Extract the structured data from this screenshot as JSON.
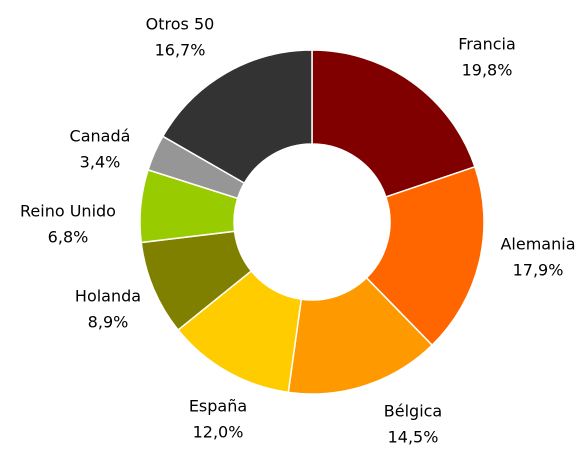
{
  "chart_data": {
    "type": "donut",
    "categories": [
      "Francia",
      "Alemania",
      "Bélgica",
      "España",
      "Holanda",
      "Reino Unido",
      "Canadá",
      "Otros 50"
    ],
    "values": [
      19.8,
      17.9,
      14.5,
      12.0,
      8.9,
      6.8,
      3.4,
      16.7
    ],
    "value_labels": [
      "19,8%",
      "17,9%",
      "14,5%",
      "12,0%",
      "8,9%",
      "6,8%",
      "3,4%",
      "16,7%"
    ],
    "colors": [
      "#800000",
      "#ff6600",
      "#ff9900",
      "#ffcc00",
      "#808000",
      "#99cc00",
      "#969696",
      "#333333"
    ]
  }
}
